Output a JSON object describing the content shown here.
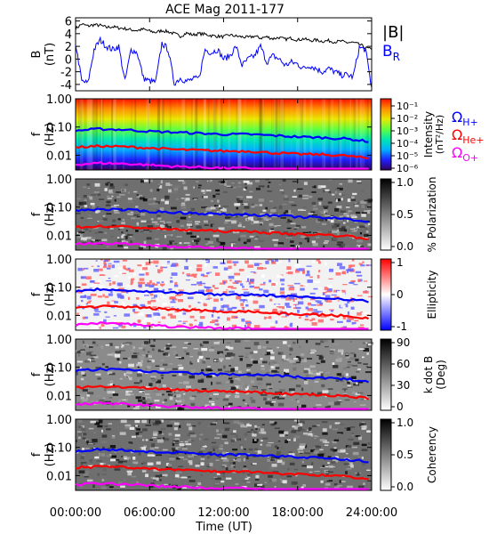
{
  "chart_data": [
    {
      "type": "line",
      "title": "ACE Mag 2011-177",
      "ylabel": "B",
      "yunit": "(nT)",
      "ylim": [
        -5,
        6.5
      ],
      "yticks": [
        -4,
        -2,
        0,
        2,
        4,
        6
      ],
      "xlim": [
        0,
        24
      ],
      "legend_placement": "right",
      "series": [
        {
          "name": "|B|",
          "color": "#000000",
          "x": [
            0,
            0.5,
            1,
            1.5,
            2,
            2.5,
            3,
            3.5,
            4,
            4.5,
            5,
            5.5,
            6,
            6.5,
            7,
            7.5,
            8,
            8.5,
            9,
            9.5,
            10,
            10.5,
            11,
            11.5,
            12,
            12.5,
            13,
            13.5,
            14,
            14.5,
            15,
            15.5,
            16,
            16.5,
            17,
            17.5,
            18,
            18.5,
            19,
            19.5,
            20,
            20.5,
            21,
            21.5,
            22,
            22.5,
            23,
            23.5,
            24
          ],
          "values": [
            4.8,
            5.5,
            5.2,
            5.4,
            5.3,
            5.0,
            5.1,
            4.9,
            4.8,
            4.6,
            4.5,
            4.7,
            4.4,
            4.2,
            4.5,
            4.3,
            4.0,
            3.6,
            4.1,
            3.8,
            4.0,
            3.9,
            3.7,
            3.6,
            3.5,
            3.8,
            3.6,
            3.5,
            3.4,
            3.6,
            3.3,
            3.5,
            3.2,
            3.4,
            3.1,
            3.3,
            3.0,
            3.2,
            2.9,
            3.0,
            2.8,
            2.9,
            2.7,
            2.8,
            2.6,
            2.6,
            2.3,
            1.8,
            1.5
          ]
        },
        {
          "name": "B",
          "subscript": "R",
          "color": "#0000ff",
          "x": [
            0,
            0.5,
            1,
            1.5,
            2,
            2.5,
            3,
            3.5,
            4,
            4.5,
            5,
            5.5,
            6,
            6.5,
            7,
            7.5,
            8,
            8.5,
            9,
            9.5,
            10,
            10.5,
            11,
            11.5,
            12,
            12.5,
            13,
            13.5,
            14,
            14.5,
            15,
            15.5,
            16,
            16.5,
            17,
            17.5,
            18,
            18.5,
            19,
            19.5,
            20,
            20.5,
            21,
            21.5,
            22,
            22.5,
            23,
            23.5,
            24
          ],
          "values": [
            2.5,
            -3.5,
            -3.8,
            1.5,
            3.0,
            2.0,
            1.5,
            2.0,
            -3.5,
            1.5,
            1.0,
            -3.0,
            -3.5,
            -3.6,
            2.5,
            1.5,
            -3.8,
            -3.0,
            -3.5,
            -3.2,
            -3.0,
            1.5,
            1.0,
            1.5,
            0.0,
            0.5,
            2.0,
            -1.0,
            0.0,
            0.5,
            2.0,
            -0.5,
            0.5,
            0.0,
            -1.0,
            -0.5,
            -0.8,
            -1.5,
            -1.0,
            -1.5,
            -2.0,
            -1.5,
            -2.0,
            -2.5,
            -2.5,
            -2.8,
            1.8,
            1.5,
            -4.5
          ]
        }
      ]
    },
    {
      "type": "heatmap",
      "ylabel": "f",
      "yunit": "(Hz)",
      "yscale": "log",
      "ylim": [
        0.003,
        1.0
      ],
      "yticks": [
        "1.00",
        "0.10",
        "0.01"
      ],
      "colorbar_label": "Intensity",
      "colorbar_unit": "(nT²/Hz)",
      "colorbar_scale": "log",
      "colorbar_range": [
        1e-06,
        0.2
      ],
      "colorbar_ticks": [
        "10⁻¹",
        "10⁻²",
        "10⁻³",
        "10⁻⁴",
        "10⁻⁵",
        "10⁻⁶"
      ],
      "colormap": [
        "#30005a",
        "#2020ff",
        "#00b0ff",
        "#00e8b0",
        "#60ff40",
        "#e8e800",
        "#ff9000",
        "#ff1000"
      ]
    },
    {
      "type": "heatmap",
      "ylabel": "f",
      "yunit": "(Hz)",
      "yscale": "log",
      "ylim": [
        0.003,
        1.0
      ],
      "yticks": [
        "1.00",
        "0.10",
        "0.01"
      ],
      "colorbar_label": "% Polarization",
      "colorbar_range": [
        0,
        1
      ],
      "colorbar_ticks": [
        "1.0",
        "0.5",
        "0.0"
      ],
      "colormap": [
        "#ffffff",
        "#000000"
      ]
    },
    {
      "type": "heatmap",
      "ylabel": "f",
      "yunit": "(Hz)",
      "yscale": "log",
      "ylim": [
        0.003,
        1.0
      ],
      "yticks": [
        "1.00",
        "0.10",
        "0.01"
      ],
      "colorbar_label": "Ellipticity",
      "colorbar_range": [
        -1,
        1
      ],
      "colorbar_ticks": [
        "1",
        "0",
        "-1"
      ],
      "colormap": [
        "#0000ff",
        "#ffffff",
        "#ff0000"
      ]
    },
    {
      "type": "heatmap",
      "ylabel": "f",
      "yunit": "(Hz)",
      "yscale": "log",
      "ylim": [
        0.003,
        1.0
      ],
      "yticks": [
        "1.00",
        "0.10",
        "0.01"
      ],
      "colorbar_label": "k dot B",
      "colorbar_unit": "(Deg)",
      "colorbar_range": [
        0,
        90
      ],
      "colorbar_ticks": [
        "90",
        "60",
        "30",
        "0"
      ],
      "colormap": [
        "#ffffff",
        "#000000"
      ]
    },
    {
      "type": "heatmap",
      "ylabel": "f",
      "yunit": "(Hz)",
      "yscale": "log",
      "ylim": [
        0.003,
        1.0
      ],
      "yticks": [
        "1.00",
        "0.10",
        "0.01"
      ],
      "colorbar_label": "Coherency",
      "colorbar_range": [
        0,
        1
      ],
      "colorbar_ticks": [
        "1.0",
        "0.5",
        "0.0"
      ],
      "colormap": [
        "#ffffff",
        "#000000"
      ]
    }
  ],
  "x_axis": {
    "label": "Time (UT)",
    "range": [
      0,
      24
    ],
    "ticks": [
      0,
      6,
      12,
      18,
      24
    ],
    "tick_labels": [
      "00:00:00",
      "06:00:00",
      "12:00:00",
      "18:00:00",
      "24:00:00"
    ]
  },
  "gyrofrequencies": [
    {
      "name": "Ω",
      "subscript": "H+",
      "color": "#0000ff",
      "x": [
        0,
        2,
        4,
        6,
        8,
        10,
        12,
        14,
        16,
        18,
        20,
        22,
        24
      ],
      "values": [
        0.075,
        0.085,
        0.08,
        0.07,
        0.065,
        0.06,
        0.055,
        0.055,
        0.05,
        0.045,
        0.042,
        0.038,
        0.03
      ]
    },
    {
      "name": "Ω",
      "subscript": "He+",
      "color": "#ff0000",
      "x": [
        0,
        2,
        4,
        6,
        8,
        10,
        12,
        14,
        16,
        18,
        20,
        22,
        24
      ],
      "values": [
        0.019,
        0.021,
        0.02,
        0.018,
        0.016,
        0.015,
        0.014,
        0.014,
        0.012,
        0.011,
        0.0105,
        0.0095,
        0.0075
      ]
    },
    {
      "name": "Ω",
      "subscript": "O+",
      "color": "#ff00ff",
      "x": [
        0,
        2,
        4,
        6,
        8,
        10,
        12,
        14,
        16,
        18,
        20,
        22,
        24
      ],
      "values": [
        0.0047,
        0.0053,
        0.005,
        0.0045,
        0.004,
        0.0038,
        0.0035,
        0.0035,
        0.003,
        0.003,
        0.003,
        0.003,
        0.003
      ]
    }
  ]
}
